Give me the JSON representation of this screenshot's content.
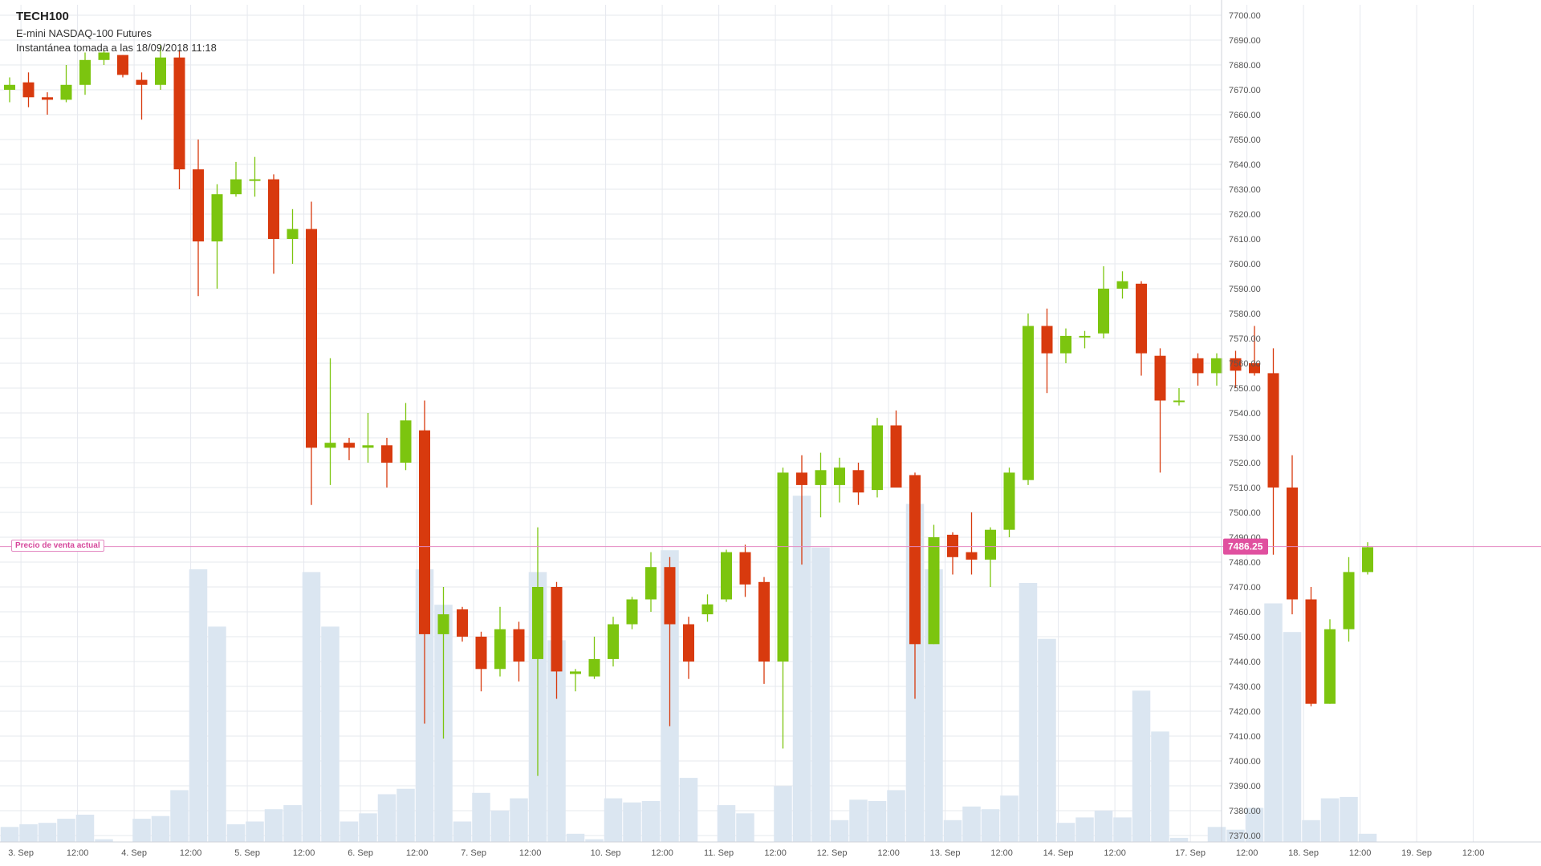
{
  "header": {
    "title": "TECH100",
    "subtitle": "E-mini NASDAQ-100 Futures",
    "snapshot": "Instantánea tomada a las 18/09/2018 11:18"
  },
  "current_price": {
    "label": "Precio de venta actual",
    "value": 7486.25,
    "value_text": "7486.25"
  },
  "colors": {
    "up": "#7cc50f",
    "down": "#d83a0e",
    "volume": "#dbe6f1",
    "grid": "#e6e8ee",
    "current_line": "#e48ac2",
    "current_tag": "#e0509f"
  },
  "chart_data": {
    "type": "candlestick",
    "title": "TECH100",
    "xlabel": "",
    "ylabel": "",
    "grid": true,
    "bar_interval": "2h",
    "ylim": [
      7370,
      7705
    ],
    "y_ticks": [
      7370,
      7380,
      7390,
      7400,
      7410,
      7420,
      7430,
      7440,
      7450,
      7460,
      7470,
      7480,
      7490,
      7500,
      7510,
      7520,
      7530,
      7540,
      7550,
      7560,
      7570,
      7580,
      7590,
      7600,
      7610,
      7620,
      7630,
      7640,
      7650,
      7660,
      7670,
      7680,
      7690,
      7700
    ],
    "x_ticks": [
      {
        "label": "3. Sep",
        "slot": 0.6
      },
      {
        "label": "12:00",
        "slot": 3.6
      },
      {
        "label": "4. Sep",
        "slot": 6.6
      },
      {
        "label": "12:00",
        "slot": 9.6
      },
      {
        "label": "5. Sep",
        "slot": 12.6
      },
      {
        "label": "12:00",
        "slot": 15.6
      },
      {
        "label": "6. Sep",
        "slot": 18.6
      },
      {
        "label": "12:00",
        "slot": 21.6
      },
      {
        "label": "7. Sep",
        "slot": 24.6
      },
      {
        "label": "12:00",
        "slot": 27.6
      },
      {
        "label": "10. Sep",
        "slot": 31.6
      },
      {
        "label": "12:00",
        "slot": 34.6
      },
      {
        "label": "11. Sep",
        "slot": 37.6
      },
      {
        "label": "12:00",
        "slot": 40.6
      },
      {
        "label": "12. Sep",
        "slot": 43.6
      },
      {
        "label": "12:00",
        "slot": 46.6
      },
      {
        "label": "13. Sep",
        "slot": 49.6
      },
      {
        "label": "12:00",
        "slot": 52.6
      },
      {
        "label": "14. Sep",
        "slot": 55.6
      },
      {
        "label": "12:00",
        "slot": 58.6
      },
      {
        "label": "17. Sep",
        "slot": 62.6
      },
      {
        "label": "12:00",
        "slot": 65.6
      },
      {
        "label": "18. Sep",
        "slot": 68.6
      },
      {
        "label": "12:00",
        "slot": 71.6
      },
      {
        "label": "19. Sep",
        "slot": 74.6
      },
      {
        "label": "12:00",
        "slot": 77.6
      }
    ],
    "volume_scale_max": 1,
    "candles": [
      {
        "slot": 0,
        "o": 7670,
        "h": 7675,
        "l": 7665,
        "c": 7672,
        "vol": 0.055
      },
      {
        "slot": 1,
        "o": 7673,
        "h": 7677,
        "l": 7663,
        "c": 7667,
        "vol": 0.065
      },
      {
        "slot": 2,
        "o": 7667,
        "h": 7669,
        "l": 7660,
        "c": 7666,
        "vol": 0.07
      },
      {
        "slot": 3,
        "o": 7666,
        "h": 7680,
        "l": 7665,
        "c": 7672,
        "vol": 0.085
      },
      {
        "slot": 4,
        "o": 7672,
        "h": 7685,
        "l": 7668,
        "c": 7682,
        "vol": 0.1
      },
      {
        "slot": 5,
        "o": 7682,
        "h": 7686,
        "l": 7680,
        "c": 7685,
        "vol": 0.01
      },
      {
        "slot": 6,
        "o": 7684,
        "h": 7684,
        "l": 7675,
        "c": 7676,
        "vol": 0.0
      },
      {
        "slot": 7,
        "o": 7674,
        "h": 7677,
        "l": 7658,
        "c": 7672,
        "vol": 0.085
      },
      {
        "slot": 8,
        "o": 7672,
        "h": 7688,
        "l": 7670,
        "c": 7683,
        "vol": 0.095
      },
      {
        "slot": 9,
        "o": 7683,
        "h": 7686,
        "l": 7630,
        "c": 7638,
        "vol": 0.19
      },
      {
        "slot": 10,
        "o": 7638,
        "h": 7650,
        "l": 7587,
        "c": 7609,
        "vol": 1.0
      },
      {
        "slot": 11,
        "o": 7609,
        "h": 7632,
        "l": 7590,
        "c": 7628,
        "vol": 0.79
      },
      {
        "slot": 12,
        "o": 7628,
        "h": 7641,
        "l": 7627,
        "c": 7634,
        "vol": 0.065
      },
      {
        "slot": 13,
        "o": 7634,
        "h": 7643,
        "l": 7627,
        "c": 7634,
        "vol": 0.075
      },
      {
        "slot": 14,
        "o": 7634,
        "h": 7636,
        "l": 7596,
        "c": 7610,
        "vol": 0.12
      },
      {
        "slot": 15,
        "o": 7610,
        "h": 7622,
        "l": 7600,
        "c": 7614,
        "vol": 0.135
      },
      {
        "slot": 16,
        "o": 7614,
        "h": 7625,
        "l": 7503,
        "c": 7526,
        "vol": 0.99
      },
      {
        "slot": 17,
        "o": 7526,
        "h": 7562,
        "l": 7511,
        "c": 7528,
        "vol": 0.79
      },
      {
        "slot": 18,
        "o": 7528,
        "h": 7530,
        "l": 7521,
        "c": 7526,
        "vol": 0.075
      },
      {
        "slot": 19,
        "o": 7526,
        "h": 7540,
        "l": 7520,
        "c": 7527,
        "vol": 0.105
      },
      {
        "slot": 20,
        "o": 7527,
        "h": 7530,
        "l": 7510,
        "c": 7520,
        "vol": 0.175
      },
      {
        "slot": 21,
        "o": 7520,
        "h": 7544,
        "l": 7517,
        "c": 7537,
        "vol": 0.195
      },
      {
        "slot": 22,
        "o": 7533,
        "h": 7545,
        "l": 7415,
        "c": 7451,
        "vol": 1.0
      },
      {
        "slot": 23,
        "o": 7451,
        "h": 7470,
        "l": 7409,
        "c": 7459,
        "vol": 0.87
      },
      {
        "slot": 24,
        "o": 7461,
        "h": 7462,
        "l": 7448,
        "c": 7450,
        "vol": 0.075
      },
      {
        "slot": 25,
        "o": 7450,
        "h": 7452,
        "l": 7428,
        "c": 7437,
        "vol": 0.18
      },
      {
        "slot": 26,
        "o": 7437,
        "h": 7462,
        "l": 7434,
        "c": 7453,
        "vol": 0.115
      },
      {
        "slot": 27,
        "o": 7453,
        "h": 7456,
        "l": 7432,
        "c": 7440,
        "vol": 0.16
      },
      {
        "slot": 28,
        "o": 7441,
        "h": 7494,
        "l": 7394,
        "c": 7470,
        "vol": 0.99
      },
      {
        "slot": 29,
        "o": 7470,
        "h": 7472,
        "l": 7425,
        "c": 7436,
        "vol": 0.74
      },
      {
        "slot": 30,
        "o": 7435,
        "h": 7437,
        "l": 7428,
        "c": 7436,
        "vol": 0.03
      },
      {
        "slot": 31,
        "o": 7434,
        "h": 7450,
        "l": 7433,
        "c": 7441,
        "vol": 0.01
      },
      {
        "slot": 32,
        "o": 7441,
        "h": 7458,
        "l": 7438,
        "c": 7455,
        "vol": 0.16
      },
      {
        "slot": 33,
        "o": 7455,
        "h": 7466,
        "l": 7453,
        "c": 7465,
        "vol": 0.145
      },
      {
        "slot": 34,
        "o": 7465,
        "h": 7484,
        "l": 7460,
        "c": 7478,
        "vol": 0.15
      },
      {
        "slot": 35,
        "o": 7478,
        "h": 7482,
        "l": 7414,
        "c": 7455,
        "vol": 1.07
      },
      {
        "slot": 36,
        "o": 7455,
        "h": 7458,
        "l": 7433,
        "c": 7440,
        "vol": 0.235
      },
      {
        "slot": 37,
        "o": 7459,
        "h": 7467,
        "l": 7456,
        "c": 7463,
        "vol": 0.0
      },
      {
        "slot": 38,
        "o": 7465,
        "h": 7485,
        "l": 7464,
        "c": 7484,
        "vol": 0.135
      },
      {
        "slot": 39,
        "o": 7484,
        "h": 7487,
        "l": 7466,
        "c": 7471,
        "vol": 0.105
      },
      {
        "slot": 40,
        "o": 7472,
        "h": 7474,
        "l": 7431,
        "c": 7440,
        "vol": 0.0
      },
      {
        "slot": 41,
        "o": 7440,
        "h": 7518,
        "l": 7405,
        "c": 7516,
        "vol": 0.205
      },
      {
        "slot": 42,
        "o": 7516,
        "h": 7523,
        "l": 7479,
        "c": 7511,
        "vol": 1.27
      },
      {
        "slot": 43,
        "o": 7511,
        "h": 7524,
        "l": 7498,
        "c": 7517,
        "vol": 1.08
      },
      {
        "slot": 44,
        "o": 7511,
        "h": 7522,
        "l": 7504,
        "c": 7518,
        "vol": 0.08
      },
      {
        "slot": 45,
        "o": 7517,
        "h": 7520,
        "l": 7503,
        "c": 7508,
        "vol": 0.155
      },
      {
        "slot": 46,
        "o": 7509,
        "h": 7538,
        "l": 7506,
        "c": 7535,
        "vol": 0.15
      },
      {
        "slot": 47,
        "o": 7535,
        "h": 7541,
        "l": 7510,
        "c": 7510,
        "vol": 0.19
      },
      {
        "slot": 48,
        "o": 7515,
        "h": 7516,
        "l": 7425,
        "c": 7447,
        "vol": 1.24
      },
      {
        "slot": 49,
        "o": 7447,
        "h": 7495,
        "l": 7447,
        "c": 7490,
        "vol": 1.0
      },
      {
        "slot": 50,
        "o": 7491,
        "h": 7492,
        "l": 7475,
        "c": 7482,
        "vol": 0.08
      },
      {
        "slot": 51,
        "o": 7484,
        "h": 7500,
        "l": 7475,
        "c": 7481,
        "vol": 0.13
      },
      {
        "slot": 52,
        "o": 7481,
        "h": 7494,
        "l": 7470,
        "c": 7493,
        "vol": 0.12
      },
      {
        "slot": 53,
        "o": 7493,
        "h": 7518,
        "l": 7490,
        "c": 7516,
        "vol": 0.17
      },
      {
        "slot": 54,
        "o": 7513,
        "h": 7580,
        "l": 7511,
        "c": 7575,
        "vol": 0.95
      },
      {
        "slot": 55,
        "o": 7575,
        "h": 7582,
        "l": 7548,
        "c": 7564,
        "vol": 0.745
      },
      {
        "slot": 56,
        "o": 7564,
        "h": 7574,
        "l": 7560,
        "c": 7571,
        "vol": 0.07
      },
      {
        "slot": 57,
        "o": 7571,
        "h": 7573,
        "l": 7566,
        "c": 7571,
        "vol": 0.09
      },
      {
        "slot": 58,
        "o": 7572,
        "h": 7599,
        "l": 7570,
        "c": 7590,
        "vol": 0.115
      },
      {
        "slot": 59,
        "o": 7590,
        "h": 7597,
        "l": 7586,
        "c": 7593,
        "vol": 0.09
      },
      {
        "slot": 60,
        "o": 7592,
        "h": 7593,
        "l": 7555,
        "c": 7564,
        "vol": 0.555
      },
      {
        "slot": 61,
        "o": 7563,
        "h": 7566,
        "l": 7516,
        "c": 7545,
        "vol": 0.405
      },
      {
        "slot": 62,
        "o": 7545,
        "h": 7550,
        "l": 7543,
        "c": 7545,
        "vol": 0.015
      },
      {
        "slot": 63,
        "o": 7562,
        "h": 7564,
        "l": 7551,
        "c": 7556,
        "vol": 0.0
      },
      {
        "slot": 64,
        "o": 7556,
        "h": 7564,
        "l": 7551,
        "c": 7562,
        "vol": 0.055
      },
      {
        "slot": 65,
        "o": 7562,
        "h": 7565,
        "l": 7550,
        "c": 7557,
        "vol": 0.045
      },
      {
        "slot": 66,
        "o": 7560,
        "h": 7575,
        "l": 7555,
        "c": 7556,
        "vol": 0.125
      },
      {
        "slot": 67,
        "o": 7556,
        "h": 7566,
        "l": 7483,
        "c": 7510,
        "vol": 0.875
      },
      {
        "slot": 68,
        "o": 7510,
        "h": 7523,
        "l": 7459,
        "c": 7465,
        "vol": 0.77
      },
      {
        "slot": 69,
        "o": 7465,
        "h": 7470,
        "l": 7422,
        "c": 7423,
        "vol": 0.08
      },
      {
        "slot": 70,
        "o": 7423,
        "h": 7457,
        "l": 7423,
        "c": 7453,
        "vol": 0.16
      },
      {
        "slot": 71,
        "o": 7453,
        "h": 7482,
        "l": 7448,
        "c": 7476,
        "vol": 0.165
      },
      {
        "slot": 72,
        "o": 7476,
        "h": 7488,
        "l": 7475,
        "c": 7486,
        "vol": 0.03
      }
    ]
  }
}
